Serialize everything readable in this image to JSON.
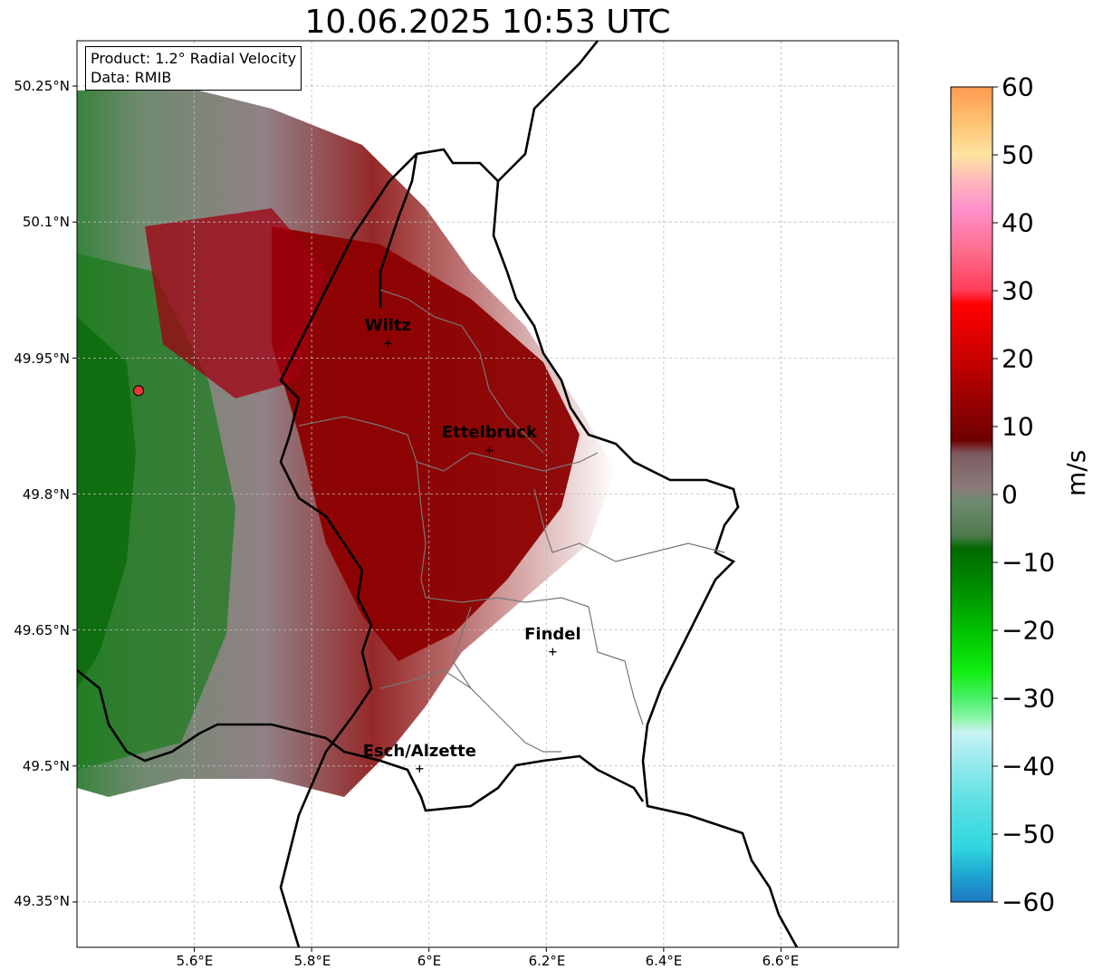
{
  "title": "10.06.2025 10:53 UTC",
  "info": {
    "product": "Product: 1.2° Radial Velocity",
    "data": "Data: RMIB"
  },
  "map": {
    "lon_range": [
      5.4,
      6.8
    ],
    "lat_range": [
      49.3,
      50.3
    ],
    "lat_ticks": [
      "50.25°N",
      "50.1°N",
      "49.95°N",
      "49.8°N",
      "49.65°N",
      "49.5°N",
      "49.35°N"
    ],
    "lon_ticks": [
      "5.6°E",
      "5.8°E",
      "6°E",
      "6.2°E",
      "6.4°E",
      "6.6°E"
    ],
    "radar_site": {
      "lon": 5.505,
      "lat": 49.914
    },
    "cities": [
      {
        "name": "Wiltz",
        "lon": 5.93,
        "lat": 49.966
      },
      {
        "name": "Ettelbruck",
        "lon": 6.103,
        "lat": 49.848
      },
      {
        "name": "Findel",
        "lon": 6.211,
        "lat": 49.626
      },
      {
        "name": "Esch/Alzette",
        "lon": 5.984,
        "lat": 49.497
      }
    ]
  },
  "colorbar": {
    "label": "m/s",
    "min": -60,
    "max": 60,
    "ticks": [
      "60",
      "50",
      "40",
      "30",
      "20",
      "10",
      "0",
      "−10",
      "−20",
      "−30",
      "−40",
      "−50",
      "−60"
    ],
    "stops": [
      {
        "v": -60,
        "c": "#1f77c0"
      },
      {
        "v": -56,
        "c": "#1fa6d0"
      },
      {
        "v": -52,
        "c": "#2fd6e0"
      },
      {
        "v": -45,
        "c": "#5fe0e3"
      },
      {
        "v": -38,
        "c": "#a8ecef"
      },
      {
        "v": -35,
        "c": "#c9f3f2"
      },
      {
        "v": -33,
        "c": "#8ef5a8"
      },
      {
        "v": -30,
        "c": "#48f06a"
      },
      {
        "v": -26,
        "c": "#10ee10"
      },
      {
        "v": -20,
        "c": "#00c000"
      },
      {
        "v": -14,
        "c": "#009000"
      },
      {
        "v": -8,
        "c": "#006800"
      },
      {
        "v": -6,
        "c": "#4f7a4f"
      },
      {
        "v": -1,
        "c": "#6f8a6f"
      },
      {
        "v": 1,
        "c": "#8a7a7a"
      },
      {
        "v": 6,
        "c": "#7e5a60"
      },
      {
        "v": 8,
        "c": "#6e0000"
      },
      {
        "v": 14,
        "c": "#9a0000"
      },
      {
        "v": 20,
        "c": "#c80000"
      },
      {
        "v": 28,
        "c": "#ff0000"
      },
      {
        "v": 30,
        "c": "#ff3c58"
      },
      {
        "v": 36,
        "c": "#ff6e8e"
      },
      {
        "v": 42,
        "c": "#ff90cc"
      },
      {
        "v": 46,
        "c": "#ffb6bc"
      },
      {
        "v": 50,
        "c": "#ffe3a0"
      },
      {
        "v": 55,
        "c": "#ffc070"
      },
      {
        "v": 60,
        "c": "#ff9a50"
      }
    ]
  }
}
